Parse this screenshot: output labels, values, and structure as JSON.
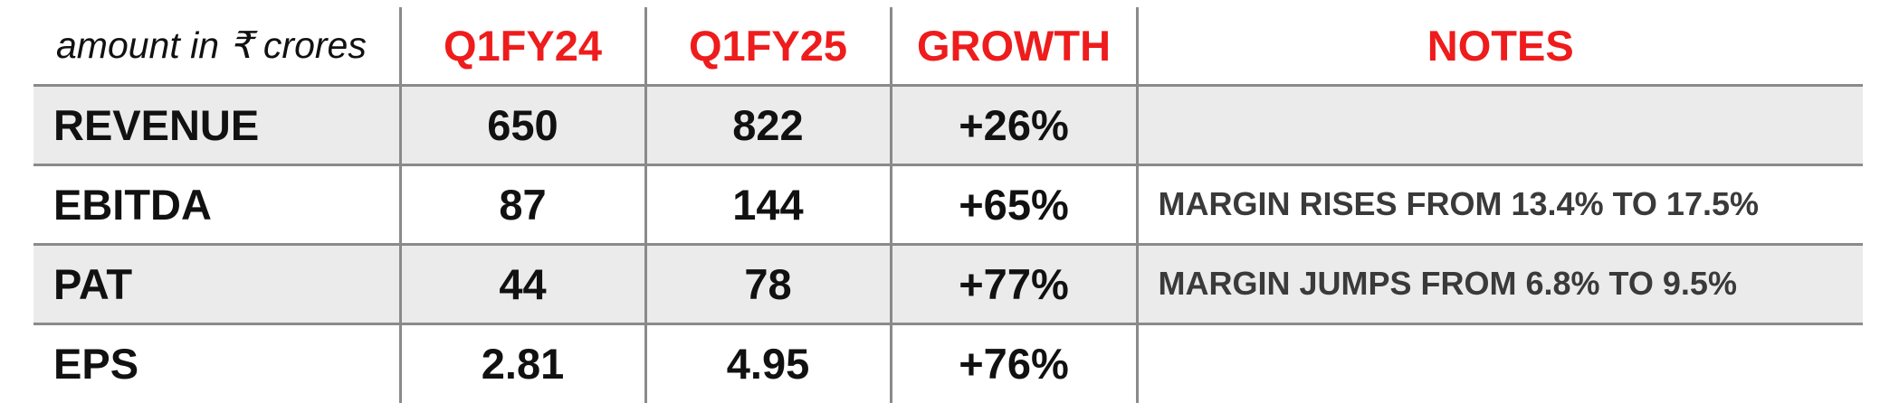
{
  "table": {
    "unit_label": "amount in ₹ crores",
    "columns": [
      "Q1FY24",
      "Q1FY25",
      "GROWTH",
      "NOTES"
    ],
    "rows": [
      {
        "metric": "REVENUE",
        "q1fy24": "650",
        "q1fy25": "822",
        "growth": "+26%",
        "note": ""
      },
      {
        "metric": "EBITDA",
        "q1fy24": "87",
        "q1fy25": "144",
        "growth": "+65%",
        "note": "MARGIN RISES FROM 13.4% TO 17.5%"
      },
      {
        "metric": "PAT",
        "q1fy24": "44",
        "q1fy25": "78",
        "growth": "+77%",
        "note": "MARGIN JUMPS FROM 6.8% TO 9.5%"
      },
      {
        "metric": "EPS",
        "q1fy24": "2.81",
        "q1fy25": "4.95",
        "growth": "+76%",
        "note": ""
      }
    ]
  },
  "colors": {
    "header_red": "#ee1c1c",
    "row_shade": "#ebebeb",
    "rule_gray": "#8a8a8a",
    "text_dark": "#111111",
    "note_gray": "#3a3a3a"
  }
}
